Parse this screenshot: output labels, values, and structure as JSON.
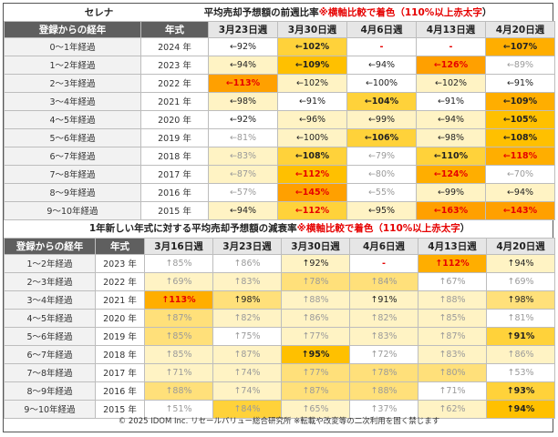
{
  "table1": {
    "corner": "セレナ",
    "title_main": "平均売却予想額の前週比率",
    "title_note": "※横軸比較で着色（110%以上",
    "title_note_red": "赤太字",
    "title_note_end": "）",
    "col_label": "登録からの経年",
    "col_year": "年式",
    "weeks": [
      "3月23日週",
      "3月30日週",
      "4月6日週",
      "4月13日週",
      "4月20日週"
    ],
    "rows": [
      {
        "label": "0～1年経過",
        "year": "2024 年",
        "cells": [
          {
            "t": "←92%",
            "c": "none",
            "g": false
          },
          {
            "t": "←102%",
            "c": "l3"
          },
          {
            "t": "-",
            "c": "none",
            "red": true
          },
          {
            "t": "-",
            "c": "none",
            "red": true
          },
          {
            "t": "←107%",
            "c": "l5"
          }
        ]
      },
      {
        "label": "1～2年経過",
        "year": "2023 年",
        "cells": [
          {
            "t": "←94%",
            "c": "l1"
          },
          {
            "t": "←109%",
            "c": "l4"
          },
          {
            "t": "←94%",
            "c": "none"
          },
          {
            "t": "←126%",
            "c": "l6",
            "red": true
          },
          {
            "t": "←89%",
            "c": "none",
            "g": true
          }
        ]
      },
      {
        "label": "2～3年経過",
        "year": "2022 年",
        "cells": [
          {
            "t": "←113%",
            "c": "l6",
            "red": true
          },
          {
            "t": "←102%",
            "c": "l1"
          },
          {
            "t": "←100%",
            "c": "none"
          },
          {
            "t": "←102%",
            "c": "l1"
          },
          {
            "t": "←91%",
            "c": "none"
          }
        ]
      },
      {
        "label": "3～4年経過",
        "year": "2021 年",
        "cells": [
          {
            "t": "←98%",
            "c": "l1"
          },
          {
            "t": "←91%",
            "c": "none"
          },
          {
            "t": "←104%",
            "c": "l3"
          },
          {
            "t": "←91%",
            "c": "none"
          },
          {
            "t": "←109%",
            "c": "l5"
          }
        ]
      },
      {
        "label": "4～5年経過",
        "year": "2020 年",
        "cells": [
          {
            "t": "←92%",
            "c": "none"
          },
          {
            "t": "←96%",
            "c": "l1"
          },
          {
            "t": "←99%",
            "c": "l1"
          },
          {
            "t": "←94%",
            "c": "l1"
          },
          {
            "t": "←105%",
            "c": "l4"
          }
        ]
      },
      {
        "label": "5～6年経過",
        "year": "2019 年",
        "cells": [
          {
            "t": "←81%",
            "c": "none",
            "g": true
          },
          {
            "t": "←100%",
            "c": "l1"
          },
          {
            "t": "←106%",
            "c": "l3"
          },
          {
            "t": "←98%",
            "c": "l1"
          },
          {
            "t": "←108%",
            "c": "l4"
          }
        ]
      },
      {
        "label": "6～7年経過",
        "year": "2018 年",
        "cells": [
          {
            "t": "←83%",
            "c": "l1",
            "g": true
          },
          {
            "t": "←108%",
            "c": "l3"
          },
          {
            "t": "←79%",
            "c": "none",
            "g": true
          },
          {
            "t": "←110%",
            "c": "l3"
          },
          {
            "t": "←118%",
            "c": "l5",
            "red": true
          }
        ]
      },
      {
        "label": "7～8年経過",
        "year": "2017 年",
        "cells": [
          {
            "t": "←87%",
            "c": "l1",
            "g": true
          },
          {
            "t": "←112%",
            "c": "l4",
            "red": true
          },
          {
            "t": "←80%",
            "c": "none",
            "g": true
          },
          {
            "t": "←124%",
            "c": "l5",
            "red": true
          },
          {
            "t": "←70%",
            "c": "none",
            "g": true
          }
        ]
      },
      {
        "label": "8～9年経過",
        "year": "2016 年",
        "cells": [
          {
            "t": "←57%",
            "c": "none",
            "g": true
          },
          {
            "t": "←145%",
            "c": "l6",
            "red": true
          },
          {
            "t": "←55%",
            "c": "none",
            "g": true
          },
          {
            "t": "←99%",
            "c": "l1"
          },
          {
            "t": "←94%",
            "c": "l1"
          }
        ]
      },
      {
        "label": "9～10年経過",
        "year": "2015 年",
        "cells": [
          {
            "t": "←94%",
            "c": "l1"
          },
          {
            "t": "←112%",
            "c": "l3",
            "red": true
          },
          {
            "t": "←95%",
            "c": "l1"
          },
          {
            "t": "←163%",
            "c": "l6",
            "red": true
          },
          {
            "t": "←143%",
            "c": "l6",
            "red": true
          }
        ]
      }
    ]
  },
  "table2": {
    "title_main": "1年新しい年式に対する平均売却予想額の減衰率",
    "title_note": "※横軸比較で着色（110%以上",
    "title_note_red": "赤太字",
    "title_note_end": "）",
    "col_label": "登録からの経年",
    "col_year": "年式",
    "weeks": [
      "3月16日週",
      "3月23日週",
      "3月30日週",
      "4月6日週",
      "4月13日週",
      "4月20日週"
    ],
    "rows": [
      {
        "label": "1～2年経過",
        "year": "2023 年",
        "cells": [
          {
            "t": "↑85%",
            "c": "none",
            "g": true
          },
          {
            "t": "↑86%",
            "c": "none",
            "g": true
          },
          {
            "t": "↑92%",
            "c": "l1"
          },
          {
            "t": "-",
            "c": "none",
            "red": true
          },
          {
            "t": "↑112%",
            "c": "l5",
            "red": true
          },
          {
            "t": "↑94%",
            "c": "l1"
          }
        ]
      },
      {
        "label": "2～3年経過",
        "year": "2022 年",
        "cells": [
          {
            "t": "↑69%",
            "c": "l1",
            "g": true
          },
          {
            "t": "↑83%",
            "c": "l1",
            "g": true
          },
          {
            "t": "↑78%",
            "c": "l2",
            "g": true
          },
          {
            "t": "↑84%",
            "c": "l2",
            "g": true
          },
          {
            "t": "↑67%",
            "c": "none",
            "g": true
          },
          {
            "t": "↑69%",
            "c": "none",
            "g": true
          }
        ]
      },
      {
        "label": "3～4年経過",
        "year": "2021 年",
        "cells": [
          {
            "t": "↑113%",
            "c": "l5",
            "red": true
          },
          {
            "t": "↑98%",
            "c": "l2"
          },
          {
            "t": "↑88%",
            "c": "l1",
            "g": true
          },
          {
            "t": "↑91%",
            "c": "l1"
          },
          {
            "t": "↑88%",
            "c": "l1",
            "g": true
          },
          {
            "t": "↑98%",
            "c": "l2"
          }
        ]
      },
      {
        "label": "4～5年経過",
        "year": "2020 年",
        "cells": [
          {
            "t": "↑87%",
            "c": "l2",
            "g": true
          },
          {
            "t": "↑82%",
            "c": "l1",
            "g": true
          },
          {
            "t": "↑86%",
            "c": "l1",
            "g": true
          },
          {
            "t": "↑82%",
            "c": "l1",
            "g": true
          },
          {
            "t": "↑85%",
            "c": "l1",
            "g": true
          },
          {
            "t": "↑81%",
            "c": "none",
            "g": true
          }
        ]
      },
      {
        "label": "5～6年経過",
        "year": "2019 年",
        "cells": [
          {
            "t": "↑85%",
            "c": "l2",
            "g": true
          },
          {
            "t": "↑75%",
            "c": "none",
            "g": true
          },
          {
            "t": "↑77%",
            "c": "l1",
            "g": true
          },
          {
            "t": "↑83%",
            "c": "l1",
            "g": true
          },
          {
            "t": "↑87%",
            "c": "l1",
            "g": true
          },
          {
            "t": "↑91%",
            "c": "l3"
          }
        ]
      },
      {
        "label": "6～7年経過",
        "year": "2018 年",
        "cells": [
          {
            "t": "↑85%",
            "c": "l1",
            "g": true
          },
          {
            "t": "↑87%",
            "c": "l1",
            "g": true
          },
          {
            "t": "↑95%",
            "c": "l4"
          },
          {
            "t": "↑72%",
            "c": "none",
            "g": true
          },
          {
            "t": "↑83%",
            "c": "l1",
            "g": true
          },
          {
            "t": "↑86%",
            "c": "l1",
            "g": true
          }
        ]
      },
      {
        "label": "7～8年経過",
        "year": "2017 年",
        "cells": [
          {
            "t": "↑71%",
            "c": "l1",
            "g": true
          },
          {
            "t": "↑74%",
            "c": "l1",
            "g": true
          },
          {
            "t": "↑77%",
            "c": "l2",
            "g": true
          },
          {
            "t": "↑78%",
            "c": "l2",
            "g": true
          },
          {
            "t": "↑80%",
            "c": "l2",
            "g": true
          },
          {
            "t": "↑53%",
            "c": "none",
            "g": true
          }
        ]
      },
      {
        "label": "8～9年経過",
        "year": "2016 年",
        "cells": [
          {
            "t": "↑88%",
            "c": "l2",
            "g": true
          },
          {
            "t": "↑74%",
            "c": "l1",
            "g": true
          },
          {
            "t": "↑87%",
            "c": "l2",
            "g": true
          },
          {
            "t": "↑88%",
            "c": "l2",
            "g": true
          },
          {
            "t": "↑71%",
            "c": "none",
            "g": true
          },
          {
            "t": "↑93%",
            "c": "l3"
          }
        ]
      },
      {
        "label": "9～10年経過",
        "year": "2015 年",
        "cells": [
          {
            "t": "↑51%",
            "c": "none",
            "g": true
          },
          {
            "t": "↑84%",
            "c": "l3",
            "g": true
          },
          {
            "t": "↑65%",
            "c": "l1",
            "g": true
          },
          {
            "t": "↑37%",
            "c": "none",
            "g": true
          },
          {
            "t": "↑62%",
            "c": "l1",
            "g": true
          },
          {
            "t": "↑94%",
            "c": "l4"
          }
        ]
      }
    ]
  },
  "footer": "© 2025 IDOM Inc. リセールバリュー総合研究所 ※転載や改変等の二次利用を固く禁じます",
  "colors": {
    "red": "#e60000",
    "header_dark": "#5f5f5f",
    "accent": "#ffc000"
  }
}
